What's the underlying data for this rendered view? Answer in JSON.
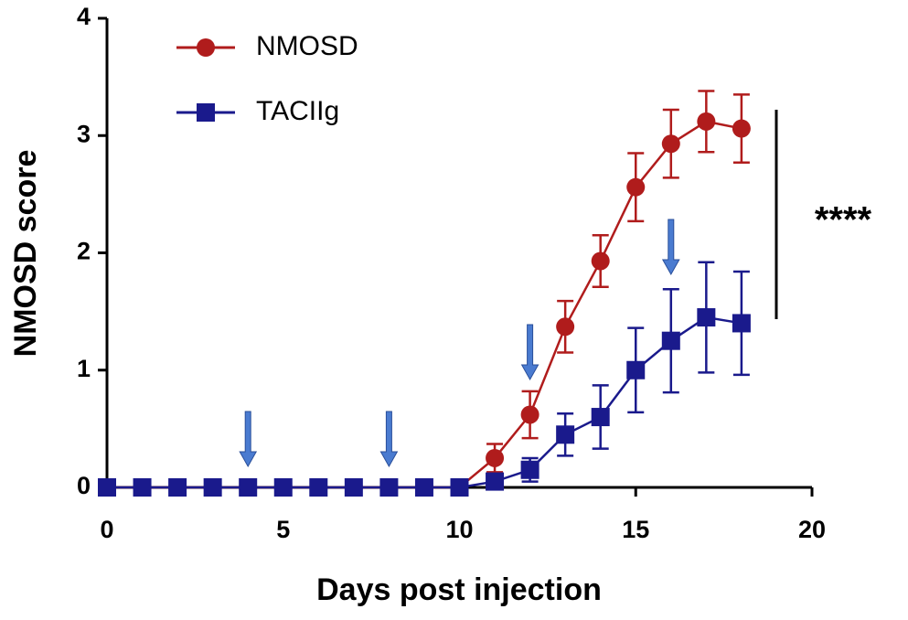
{
  "chart_data": {
    "type": "line",
    "x_label": "Days post injection",
    "y_label": "NMOSD score",
    "xlim": [
      0,
      20
    ],
    "xticks": [
      0,
      5,
      10,
      15,
      20
    ],
    "ylim": [
      0,
      4
    ],
    "yticks": [
      0,
      1,
      2,
      3,
      4
    ],
    "x": [
      0,
      1,
      2,
      3,
      4,
      5,
      6,
      7,
      8,
      9,
      10,
      11,
      12,
      13,
      14,
      15,
      16,
      17,
      18
    ],
    "series": [
      {
        "name": "NMOSD",
        "color": "#b01c1c",
        "marker": "circle",
        "values": [
          0,
          0,
          0,
          0,
          0,
          0,
          0,
          0,
          0,
          0,
          0,
          0.25,
          0.62,
          1.37,
          1.93,
          2.56,
          2.93,
          3.12,
          3.06
        ],
        "errors": [
          0,
          0,
          0,
          0,
          0,
          0,
          0,
          0,
          0,
          0,
          0,
          0.12,
          0.2,
          0.22,
          0.22,
          0.29,
          0.29,
          0.26,
          0.29
        ]
      },
      {
        "name": "TACIIg",
        "color": "#1a1a8c",
        "marker": "square",
        "values": [
          0,
          0,
          0,
          0,
          0,
          0,
          0,
          0,
          0,
          0,
          0,
          0.05,
          0.15,
          0.45,
          0.6,
          1.0,
          1.25,
          1.45,
          1.4
        ],
        "errors": [
          0,
          0,
          0,
          0,
          0,
          0,
          0,
          0,
          0,
          0,
          0,
          0.03,
          0.1,
          0.18,
          0.27,
          0.36,
          0.44,
          0.47,
          0.44
        ]
      }
    ],
    "arrows_x": [
      4,
      8,
      12,
      16
    ],
    "significance": "****"
  }
}
